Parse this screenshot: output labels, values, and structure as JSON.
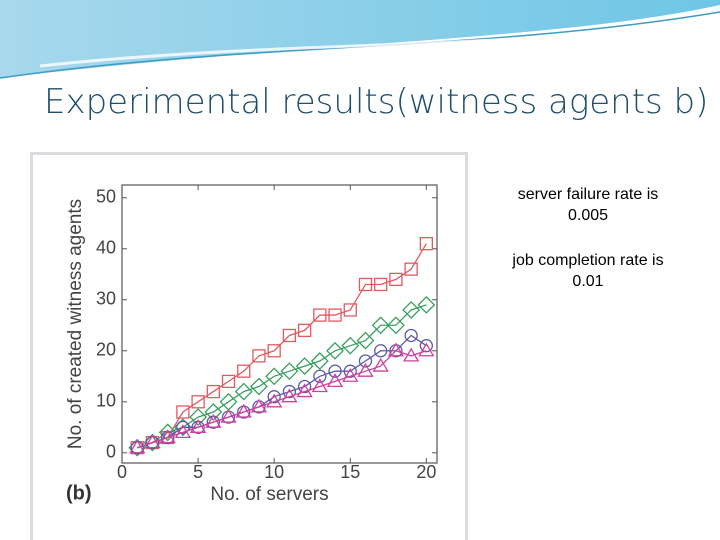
{
  "slide_title": "Experimental results(witness agents b)",
  "notes": [
    [
      "server failure rate is",
      "0.005"
    ],
    [
      "job completion rate is",
      "0.01"
    ]
  ],
  "chart_data": {
    "type": "line",
    "annotation": "(b)",
    "x_label": "No. of servers",
    "y_label": "No. of created witness agents",
    "x": [
      1,
      2,
      3,
      4,
      5,
      6,
      7,
      8,
      9,
      10,
      11,
      12,
      13,
      14,
      15,
      16,
      17,
      18,
      19,
      20
    ],
    "series": [
      {
        "color": "#e05a60",
        "marker": "square",
        "values": [
          1,
          2,
          3,
          8,
          10,
          12,
          14,
          16,
          19,
          20,
          23,
          24,
          27,
          27,
          28,
          33,
          33,
          34,
          36,
          41
        ]
      },
      {
        "color": "#3aa060",
        "marker": "diamond",
        "values": [
          1,
          2,
          4,
          5,
          7,
          8,
          10,
          12,
          13,
          15,
          16,
          17,
          18,
          20,
          21,
          22,
          25,
          25,
          28,
          29
        ]
      },
      {
        "color": "#5a5aa8",
        "marker": "circle",
        "values": [
          1,
          2,
          3,
          5,
          5,
          6,
          7,
          8,
          9,
          11,
          12,
          13,
          15,
          16,
          16,
          18,
          20,
          20,
          23,
          21
        ]
      },
      {
        "color": "#d040a0",
        "marker": "triangle",
        "values": [
          1,
          2,
          3,
          4,
          5,
          6,
          7,
          8,
          9,
          10,
          11,
          12,
          13,
          14,
          15,
          16,
          17,
          20,
          19,
          20
        ]
      }
    ],
    "xlim": [
      0,
      20.7
    ],
    "ylim": [
      -2,
      52.5
    ],
    "xticks": [
      0,
      5,
      10,
      15,
      20
    ],
    "yticks": [
      0,
      10,
      20,
      30,
      40,
      50
    ]
  }
}
